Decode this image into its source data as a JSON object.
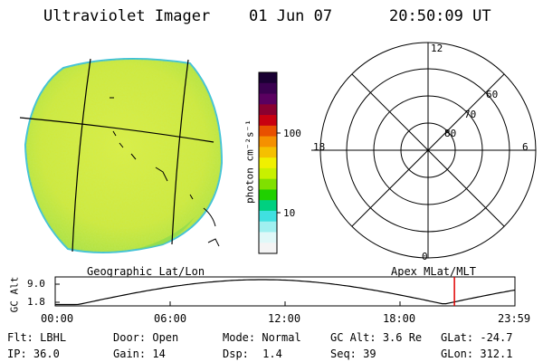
{
  "header": {
    "instrument": "Ultraviolet Imager",
    "date": "01 Jun 07",
    "time": "20:50:09 UT"
  },
  "colorbar": {
    "unit_label": "photon cm⁻²s⁻¹",
    "tick_labels": [
      "100",
      "10"
    ],
    "colors_top_to_bottom": [
      "#1a0033",
      "#3a0050",
      "#5a0060",
      "#8a0030",
      "#c80010",
      "#e85000",
      "#f59000",
      "#f5c000",
      "#f0f000",
      "#c8f000",
      "#80e000",
      "#20d000",
      "#00d080",
      "#40e0e0",
      "#a0f0f0",
      "#e0f8f8",
      "#f4f4f4"
    ]
  },
  "image_panel": {
    "caption": "Geographic Lat/Lon",
    "fill_color": "#d8ec3c",
    "edge_color": "#3cc0d8"
  },
  "polar_panel": {
    "caption": "Apex MLat/MLT",
    "mlt_labels": {
      "top": "12",
      "bottom": "0",
      "left": "18",
      "right": "6"
    },
    "mlat_labels": [
      "60",
      "70",
      "80"
    ]
  },
  "altitude_plot": {
    "ylabel": "GC Alt",
    "y_ticks": [
      "9.0",
      "1.8"
    ],
    "x_ticks": [
      "00:00",
      "06:00",
      "12:00",
      "18:00",
      "23:59"
    ],
    "current_time_hours": 20.84,
    "marker_color": "#e00000"
  },
  "status": {
    "row1": [
      {
        "key": "Flt:",
        "value": "LBHL"
      },
      {
        "key": "Door:",
        "value": "Open"
      },
      {
        "key": "Mode:",
        "value": "Normal"
      },
      {
        "key": "GC Alt:",
        "value": "3.6 Re"
      },
      {
        "key": "GLat:",
        "value": "-24.7"
      }
    ],
    "row2": [
      {
        "key": "IP:",
        "value": "36.0"
      },
      {
        "key": "Gain:",
        "value": "14"
      },
      {
        "key": "Dsp:",
        "value": "1.4"
      },
      {
        "key": "Seq:",
        "value": "39"
      },
      {
        "key": "GLon:",
        "value": "312.1"
      }
    ]
  }
}
